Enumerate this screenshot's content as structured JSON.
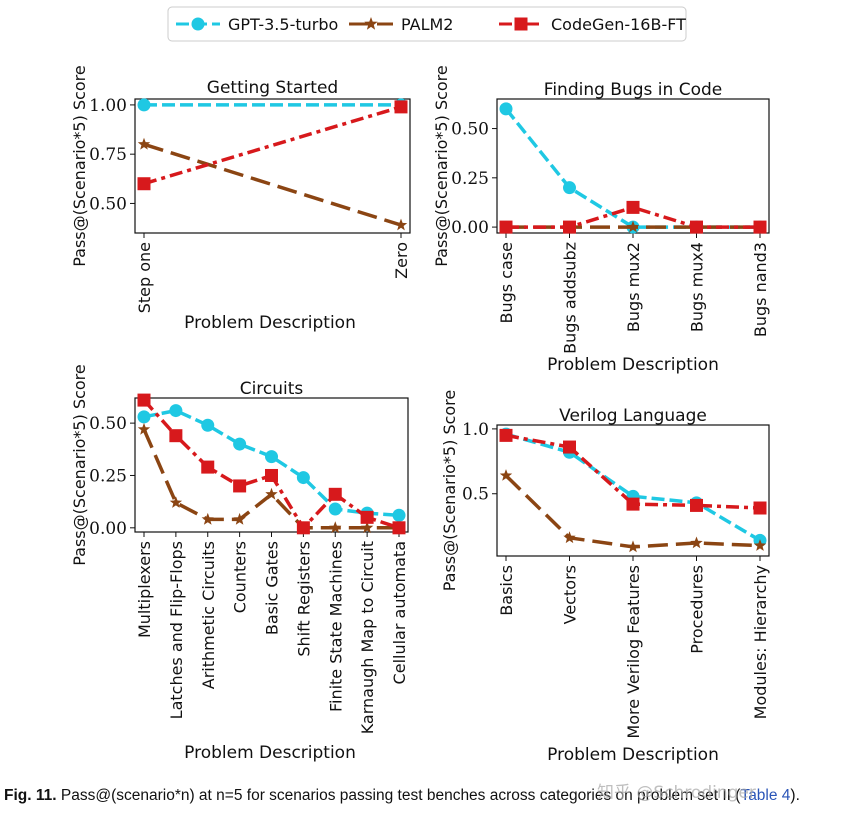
{
  "legend": [
    {
      "name": "GPT-3.5-turbo",
      "color": "#1fc8e3",
      "marker": "circle",
      "dash": "dashed"
    },
    {
      "name": "PALM2",
      "color": "#8b4513",
      "marker": "star",
      "dash": "longdash"
    },
    {
      "name": "CodeGen-16B-FT",
      "color": "#d7191c",
      "marker": "square",
      "dash": "dashdot"
    }
  ],
  "chart_data": [
    {
      "type": "line",
      "title": "Getting Started",
      "xlabel": "Problem Description",
      "ylabel": "Pass@(Scenario*5) Score",
      "categories": [
        "Step one",
        "Zero"
      ],
      "ylim": [
        0.35,
        1.03
      ],
      "yticks": [
        "0.50",
        "0.75",
        "1.00"
      ],
      "series": [
        {
          "name": "GPT-3.5-turbo",
          "values": [
            1.0,
            1.0
          ]
        },
        {
          "name": "PALM2",
          "values": [
            0.8,
            0.39
          ]
        },
        {
          "name": "CodeGen-16B-FT",
          "values": [
            0.6,
            0.99
          ]
        }
      ]
    },
    {
      "type": "line",
      "title": "Finding Bugs in Code",
      "xlabel": "Problem Description",
      "ylabel": "Pass@(Scenario*5) Score",
      "categories": [
        "Bugs case",
        "Bugs addsubz",
        "Bugs mux2",
        "Bugs mux4",
        "Bugs nand3"
      ],
      "ylim": [
        -0.03,
        0.65
      ],
      "yticks": [
        "0.00",
        "0.25",
        "0.50"
      ],
      "series": [
        {
          "name": "GPT-3.5-turbo",
          "values": [
            0.6,
            0.2,
            0.0,
            0.0,
            0.0
          ]
        },
        {
          "name": "PALM2",
          "values": [
            0.0,
            0.0,
            0.0,
            0.0,
            0.0
          ]
        },
        {
          "name": "CodeGen-16B-FT",
          "values": [
            0.0,
            0.0,
            0.1,
            0.0,
            0.0
          ]
        }
      ]
    },
    {
      "type": "line",
      "title": "Circuits",
      "xlabel": "Problem Description",
      "ylabel": "Pass@(Scenario*5) Score",
      "categories": [
        "Multiplexers",
        "Latches and Flip-Flops",
        "Arithmetic Circuits",
        "Counters",
        "Basic Gates",
        "Shift Registers",
        "Finite State Machines",
        "Karnaugh Map to Circuit",
        "Cellular automata"
      ],
      "ylim": [
        -0.02,
        0.62
      ],
      "yticks": [
        "0.00",
        "0.25",
        "0.50"
      ],
      "series": [
        {
          "name": "GPT-3.5-turbo",
          "values": [
            0.53,
            0.56,
            0.49,
            0.4,
            0.34,
            0.24,
            0.09,
            0.07,
            0.06
          ]
        },
        {
          "name": "PALM2",
          "values": [
            0.47,
            0.12,
            0.04,
            0.04,
            0.16,
            0.0,
            0.0,
            0.0,
            0.0
          ]
        },
        {
          "name": "CodeGen-16B-FT",
          "values": [
            0.61,
            0.44,
            0.29,
            0.2,
            0.25,
            0.0,
            0.16,
            0.05,
            0.0
          ]
        }
      ]
    },
    {
      "type": "line",
      "title": "Verilog Language",
      "xlabel": "Problem Description",
      "ylabel": "Pass@(Scenario*5) Score",
      "categories": [
        "Basics",
        "Vectors",
        "More Verilog Features",
        "Procedures",
        "Modules: Hierarchy"
      ],
      "ylim": [
        0.02,
        1.03
      ],
      "yticks": [
        "0.5",
        "1.0"
      ],
      "series": [
        {
          "name": "GPT-3.5-turbo",
          "values": [
            0.96,
            0.82,
            0.48,
            0.43,
            0.14
          ]
        },
        {
          "name": "PALM2",
          "values": [
            0.64,
            0.16,
            0.09,
            0.12,
            0.1
          ]
        },
        {
          "name": "CodeGen-16B-FT",
          "values": [
            0.95,
            0.86,
            0.42,
            0.41,
            0.39
          ]
        }
      ]
    }
  ],
  "caption": {
    "label": "Fig. 11.",
    "text": "Pass@(scenario*n) at n=5 for scenarios passing test benches across categories on problem set II (",
    "ref": "Table 4",
    "end": ")."
  },
  "watermark": "知乎 @Schrodinger"
}
